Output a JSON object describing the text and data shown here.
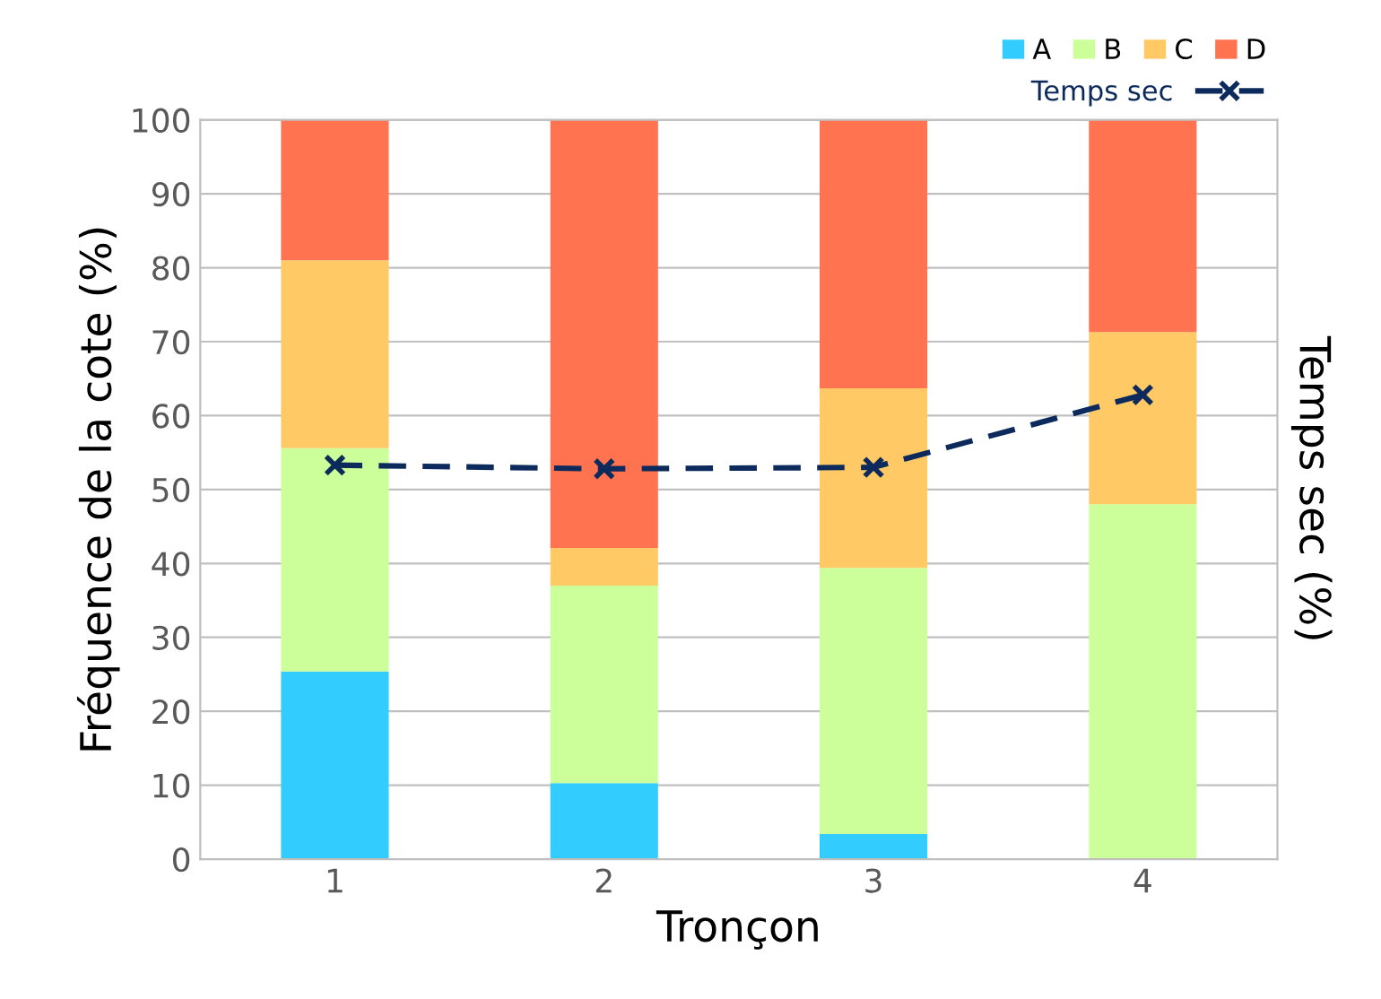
{
  "chart_data": {
    "type": "bar",
    "stacked": true,
    "xlabel": "Tronçon",
    "ylabel": "Fréquence de la cote (%)",
    "y2label": "Temps sec (%)",
    "categories": [
      "1",
      "2",
      "3",
      "4"
    ],
    "series": [
      {
        "name": "A",
        "color": "#33ccff",
        "values": [
          25.4,
          10.3,
          3.4,
          0
        ]
      },
      {
        "name": "B",
        "color": "#ccff99",
        "values": [
          30.2,
          26.7,
          36.0,
          48.0
        ]
      },
      {
        "name": "C",
        "color": "#ffc966",
        "values": [
          25.4,
          5.1,
          24.3,
          23.3
        ]
      },
      {
        "name": "D",
        "color": "#ff7350",
        "values": [
          19.0,
          57.9,
          36.3,
          28.7
        ]
      },
      {
        "name": "Temps sec",
        "type": "line",
        "color": "#0d2a5c",
        "values": [
          53.3,
          52.8,
          53.0,
          62.8
        ],
        "marker": "cross",
        "line_style": "dashed"
      }
    ],
    "ylim": [
      0,
      100
    ],
    "yticks": [
      0,
      10,
      20,
      30,
      40,
      50,
      60,
      70,
      80,
      90,
      100
    ],
    "grid": "y",
    "legend": "top right"
  }
}
